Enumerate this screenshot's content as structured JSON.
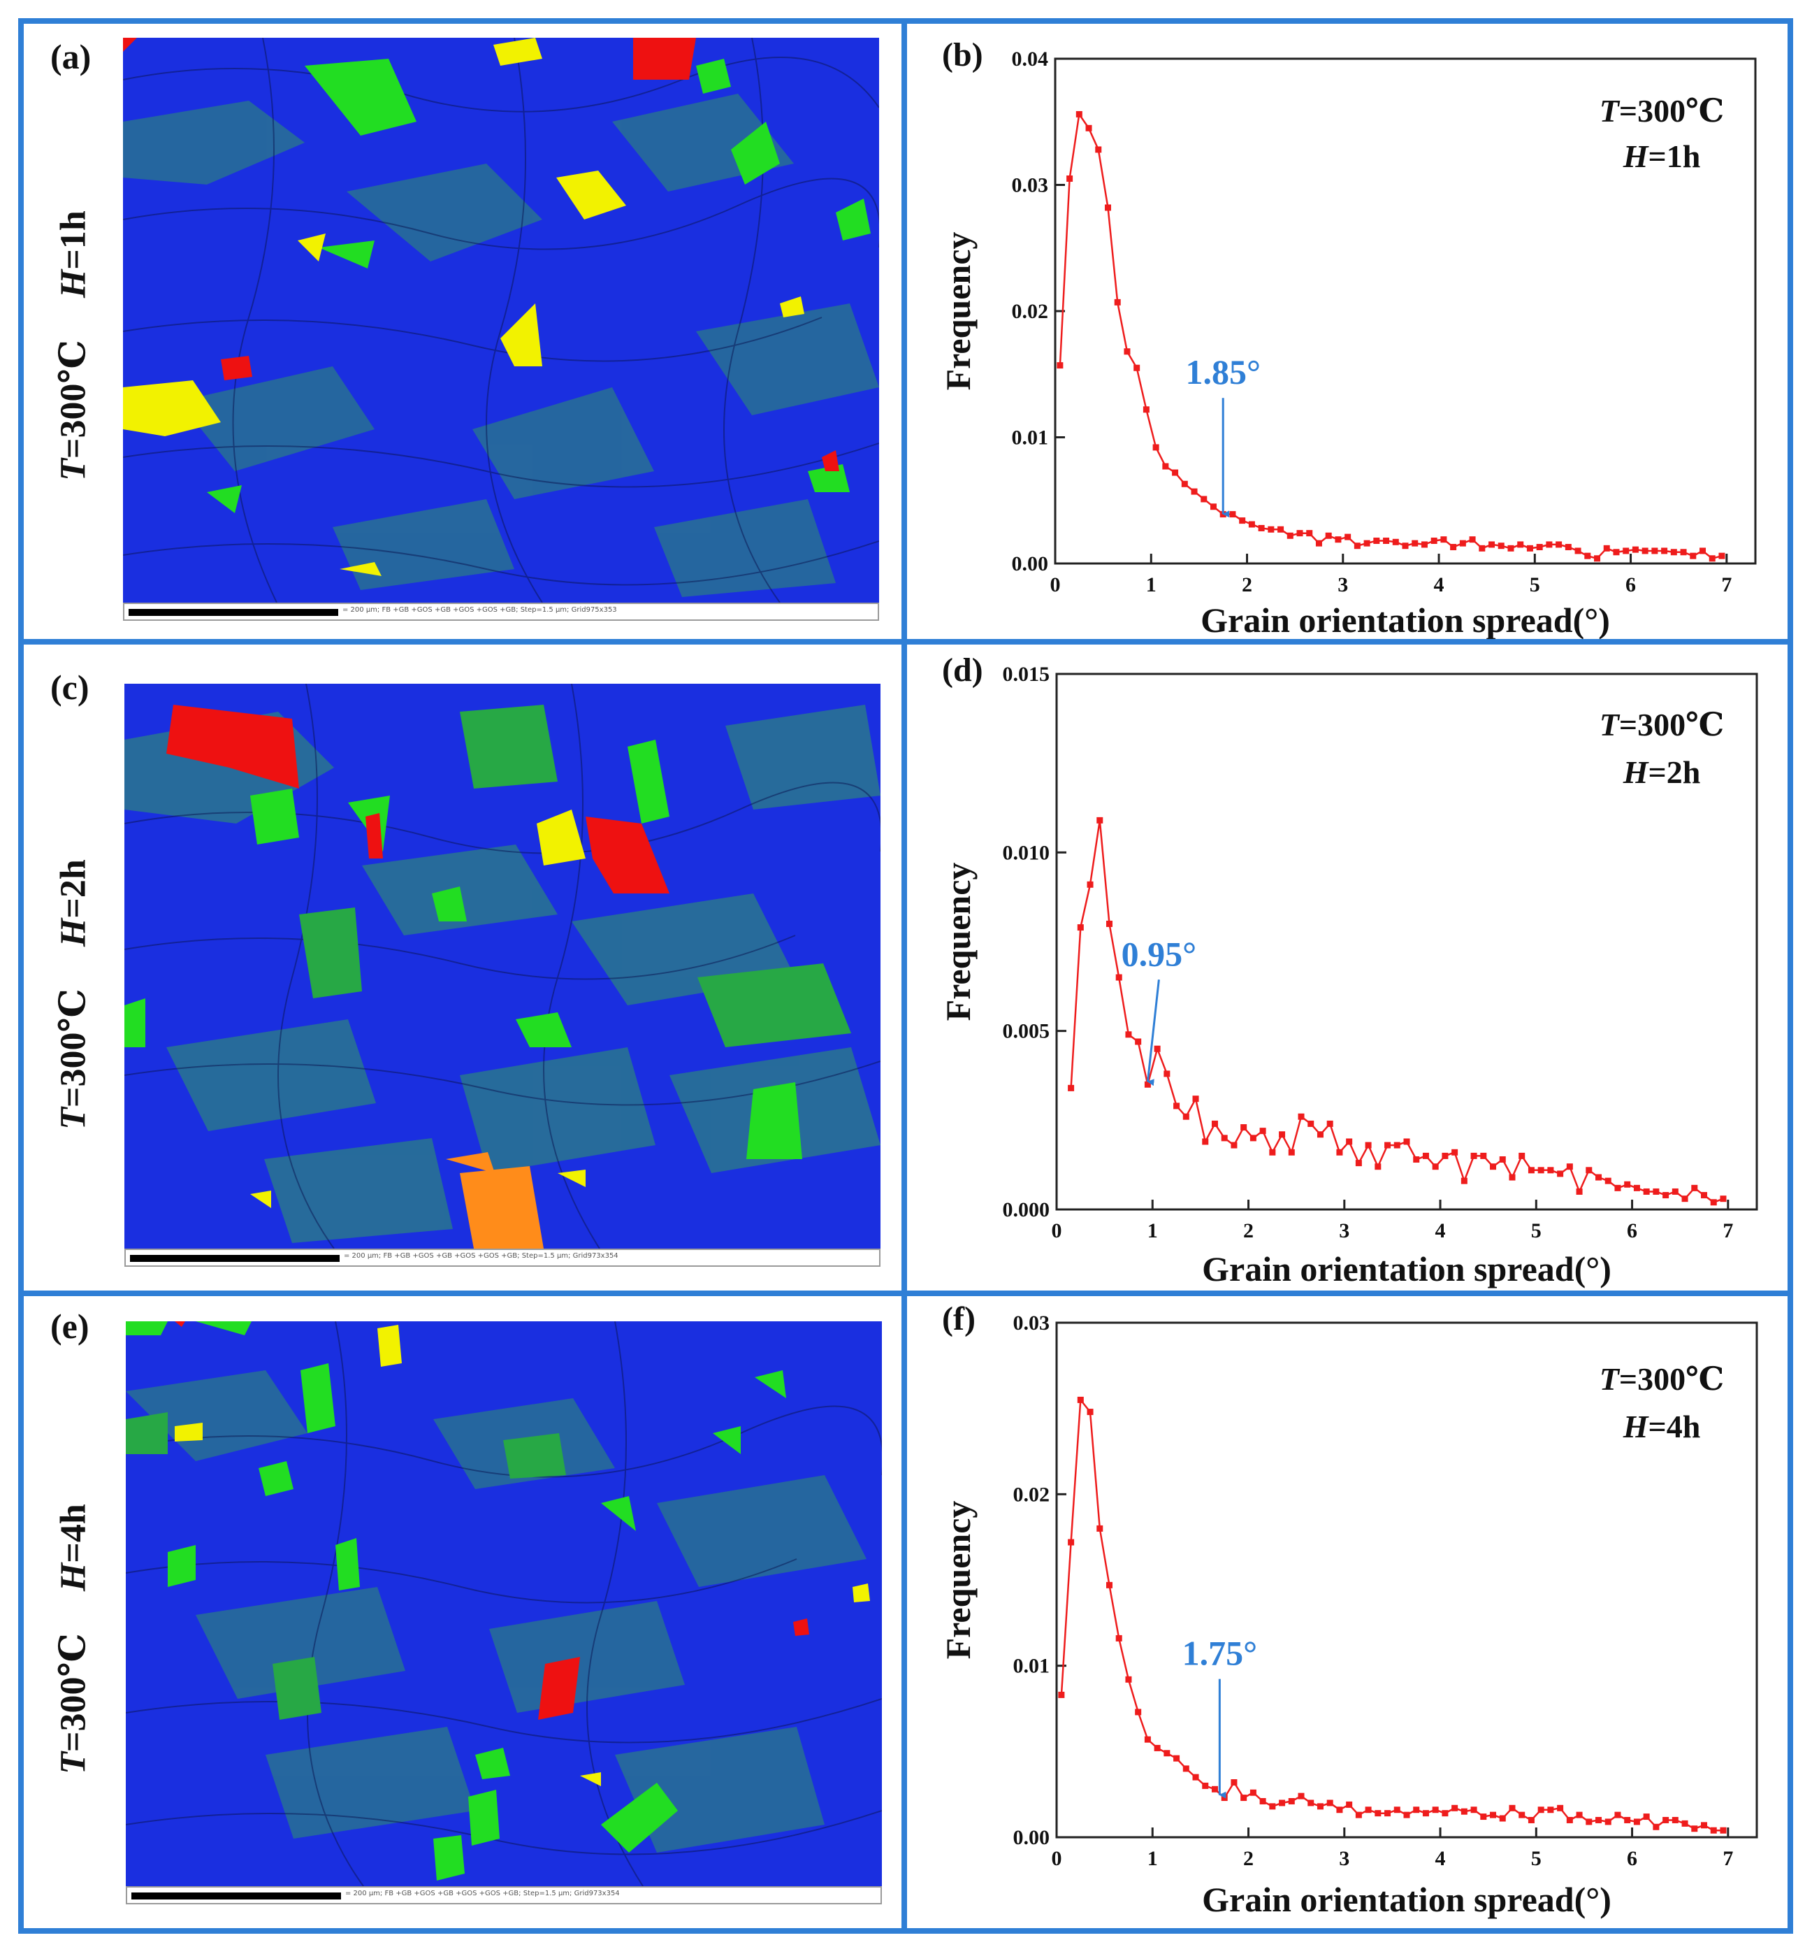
{
  "figure": {
    "frame_color": "#2f7fd6",
    "maps": [
      {
        "letter": "(a)",
        "temp_label": "T=300℃",
        "time_label": "H=1h",
        "temp_var": "T",
        "temp_rest": "=300℃",
        "time_var": "H",
        "time_rest": "=1h",
        "scale_text": "= 200 µm; FB +GB +GOS +GB +GOS +GOS +GB; Step=1.5 µm; Grid975x353"
      },
      {
        "letter": "(c)",
        "temp_label": "T=300℃",
        "time_label": "H=2h",
        "temp_var": "T",
        "temp_rest": "=300℃",
        "time_var": "H",
        "time_rest": "=2h",
        "scale_text": "= 200 µm; FB +GB +GOS +GB +GOS +GOS +GB; Step=1.5 µm; Grid973x354"
      },
      {
        "letter": "(e)",
        "temp_label": "T=300℃",
        "time_label": "H=4h",
        "temp_var": "T",
        "temp_rest": "=300℃",
        "time_var": "H",
        "time_rest": "=4h",
        "scale_text": "= 200 µm; FB +GB +GOS +GB +GOS +GOS +GB; Step=1.5 µm; Grid973x354"
      }
    ],
    "colors": {
      "map_blue": "#1a2fe0",
      "map_teal": "#2a7a8a",
      "map_green": "#22dd22",
      "map_yellow": "#f2f200",
      "map_red": "#ee1111",
      "map_orange": "#ff8c1a",
      "series": "#ee1c1c",
      "annotation": "#2f7fd6"
    }
  },
  "chart_data": [
    {
      "letter": "(b)",
      "type": "line",
      "xlabel": "Grain orientation spread(°)",
      "ylabel": "Frequency",
      "xlim": [
        0,
        7.3
      ],
      "ylim": [
        0,
        0.04
      ],
      "xticks": [
        0,
        1,
        2,
        3,
        4,
        5,
        6,
        7
      ],
      "yticks": [
        0.0,
        0.01,
        0.02,
        0.03,
        0.04
      ],
      "ytick_labels": [
        "0.00",
        "0.01",
        "0.02",
        "0.03",
        "0.04"
      ],
      "legend_temp_var": "T",
      "legend_temp_rest": "=300℃",
      "legend_time_var": "H",
      "legend_time_rest": "=1h",
      "annotation": {
        "text": "1.85°",
        "x": 1.75,
        "y": 0.0037
      },
      "x": [
        0.05,
        0.15,
        0.25,
        0.35,
        0.45,
        0.55,
        0.65,
        0.75,
        0.85,
        0.95,
        1.05,
        1.15,
        1.25,
        1.35,
        1.45,
        1.55,
        1.65,
        1.75,
        1.85,
        1.95,
        2.05,
        2.15,
        2.25,
        2.35,
        2.45,
        2.55,
        2.65,
        2.75,
        2.85,
        2.95,
        3.05,
        3.15,
        3.25,
        3.35,
        3.45,
        3.55,
        3.65,
        3.75,
        3.85,
        3.95,
        4.05,
        4.15,
        4.25,
        4.35,
        4.45,
        4.55,
        4.65,
        4.75,
        4.85,
        4.95,
        5.05,
        5.15,
        5.25,
        5.35,
        5.45,
        5.55,
        5.65,
        5.75,
        5.85,
        5.95,
        6.05,
        6.15,
        6.25,
        6.35,
        6.45,
        6.55,
        6.65,
        6.75,
        6.85,
        6.95
      ],
      "values": [
        0.0157,
        0.0305,
        0.0356,
        0.0345,
        0.0328,
        0.0282,
        0.0207,
        0.0168,
        0.0155,
        0.0122,
        0.0092,
        0.0077,
        0.0072,
        0.0063,
        0.0057,
        0.0051,
        0.0045,
        0.0039,
        0.0039,
        0.0034,
        0.0031,
        0.0028,
        0.0027,
        0.0027,
        0.0022,
        0.0024,
        0.0024,
        0.0016,
        0.0022,
        0.0019,
        0.0021,
        0.0014,
        0.0016,
        0.0018,
        0.0018,
        0.0017,
        0.0014,
        0.0016,
        0.0015,
        0.0018,
        0.0019,
        0.0013,
        0.0016,
        0.0019,
        0.0012,
        0.0015,
        0.0014,
        0.0012,
        0.0015,
        0.0012,
        0.0013,
        0.0015,
        0.0015,
        0.0013,
        0.001,
        0.0006,
        0.0004,
        0.0012,
        0.0009,
        0.001,
        0.0011,
        0.001,
        0.001,
        0.001,
        0.0009,
        0.0009,
        0.0006,
        0.001,
        0.0004,
        0.0006
      ]
    },
    {
      "letter": "(d)",
      "type": "line",
      "xlabel": "Grain orientation spread(°)",
      "ylabel": "Frequency",
      "xlim": [
        0,
        7.3
      ],
      "ylim": [
        0,
        0.015
      ],
      "xticks": [
        0,
        1,
        2,
        3,
        4,
        5,
        6,
        7
      ],
      "yticks": [
        0.0,
        0.005,
        0.01,
        0.015
      ],
      "ytick_labels": [
        "0.000",
        "0.005",
        "0.010",
        "0.015"
      ],
      "legend_temp_var": "T",
      "legend_temp_rest": "=300℃",
      "legend_time_var": "H",
      "legend_time_rest": "=2h",
      "annotation": {
        "text": "0.95°",
        "x": 0.95,
        "y": 0.0035
      },
      "x": [
        0.15,
        0.25,
        0.35,
        0.45,
        0.55,
        0.65,
        0.75,
        0.85,
        0.95,
        1.05,
        1.15,
        1.25,
        1.35,
        1.45,
        1.55,
        1.65,
        1.75,
        1.85,
        1.95,
        2.05,
        2.15,
        2.25,
        2.35,
        2.45,
        2.55,
        2.65,
        2.75,
        2.85,
        2.95,
        3.05,
        3.15,
        3.25,
        3.35,
        3.45,
        3.55,
        3.65,
        3.75,
        3.85,
        3.95,
        4.05,
        4.15,
        4.25,
        4.35,
        4.45,
        4.55,
        4.65,
        4.75,
        4.85,
        4.95,
        5.05,
        5.15,
        5.25,
        5.35,
        5.45,
        5.55,
        5.65,
        5.75,
        5.85,
        5.95,
        6.05,
        6.15,
        6.25,
        6.35,
        6.45,
        6.55,
        6.65,
        6.75,
        6.85,
        6.95
      ],
      "values": [
        0.0034,
        0.0079,
        0.0091,
        0.0109,
        0.008,
        0.0065,
        0.0049,
        0.0047,
        0.0035,
        0.0045,
        0.0038,
        0.0029,
        0.0026,
        0.0031,
        0.0019,
        0.0024,
        0.002,
        0.0018,
        0.0023,
        0.002,
        0.0022,
        0.0016,
        0.0021,
        0.0016,
        0.0026,
        0.0024,
        0.0021,
        0.0024,
        0.0016,
        0.0019,
        0.0013,
        0.0018,
        0.0012,
        0.0018,
        0.0018,
        0.0019,
        0.0014,
        0.0015,
        0.0012,
        0.0015,
        0.0016,
        0.0008,
        0.0015,
        0.0015,
        0.0012,
        0.0014,
        0.0009,
        0.0015,
        0.0011,
        0.0011,
        0.0011,
        0.001,
        0.0012,
        0.0005,
        0.0011,
        0.0009,
        0.0008,
        0.0006,
        0.0007,
        0.0006,
        0.0005,
        0.0005,
        0.0004,
        0.0005,
        0.0003,
        0.0006,
        0.0004,
        0.0002,
        0.0003
      ]
    },
    {
      "letter": "(f)",
      "type": "line",
      "xlabel": "Grain orientation spread(°)",
      "ylabel": "Frequency",
      "xlim": [
        0,
        7.3
      ],
      "ylim": [
        0,
        0.03
      ],
      "xticks": [
        0,
        1,
        2,
        3,
        4,
        5,
        6,
        7
      ],
      "yticks": [
        0.0,
        0.01,
        0.02,
        0.03
      ],
      "ytick_labels": [
        "0.00",
        "0.01",
        "0.02",
        "0.03"
      ],
      "legend_temp_var": "T",
      "legend_temp_rest": "=300℃",
      "legend_time_var": "H",
      "legend_time_rest": "=4h",
      "annotation": {
        "text": "1.75°",
        "x": 1.7,
        "y": 0.0023
      },
      "x": [
        0.05,
        0.15,
        0.25,
        0.35,
        0.45,
        0.55,
        0.65,
        0.75,
        0.85,
        0.95,
        1.05,
        1.15,
        1.25,
        1.35,
        1.45,
        1.55,
        1.65,
        1.75,
        1.85,
        1.95,
        2.05,
        2.15,
        2.25,
        2.35,
        2.45,
        2.55,
        2.65,
        2.75,
        2.85,
        2.95,
        3.05,
        3.15,
        3.25,
        3.35,
        3.45,
        3.55,
        3.65,
        3.75,
        3.85,
        3.95,
        4.05,
        4.15,
        4.25,
        4.35,
        4.45,
        4.55,
        4.65,
        4.75,
        4.85,
        4.95,
        5.05,
        5.15,
        5.25,
        5.35,
        5.45,
        5.55,
        5.65,
        5.75,
        5.85,
        5.95,
        6.05,
        6.15,
        6.25,
        6.35,
        6.45,
        6.55,
        6.65,
        6.75,
        6.85,
        6.95
      ],
      "values": [
        0.0083,
        0.0172,
        0.0255,
        0.0248,
        0.018,
        0.0147,
        0.0116,
        0.0092,
        0.0073,
        0.0057,
        0.0052,
        0.0049,
        0.0046,
        0.004,
        0.0035,
        0.003,
        0.0028,
        0.0023,
        0.0032,
        0.0023,
        0.0026,
        0.0021,
        0.0018,
        0.002,
        0.0021,
        0.0024,
        0.002,
        0.0018,
        0.002,
        0.0016,
        0.0019,
        0.0013,
        0.0016,
        0.0014,
        0.0014,
        0.0016,
        0.0013,
        0.0016,
        0.0014,
        0.0016,
        0.0014,
        0.0017,
        0.0015,
        0.0016,
        0.0012,
        0.0013,
        0.0011,
        0.0017,
        0.0013,
        0.001,
        0.0016,
        0.0016,
        0.0017,
        0.001,
        0.0013,
        0.0009,
        0.001,
        0.0009,
        0.0013,
        0.001,
        0.0009,
        0.0012,
        0.0006,
        0.001,
        0.001,
        0.0008,
        0.0005,
        0.0007,
        0.0004,
        0.0004
      ]
    }
  ]
}
